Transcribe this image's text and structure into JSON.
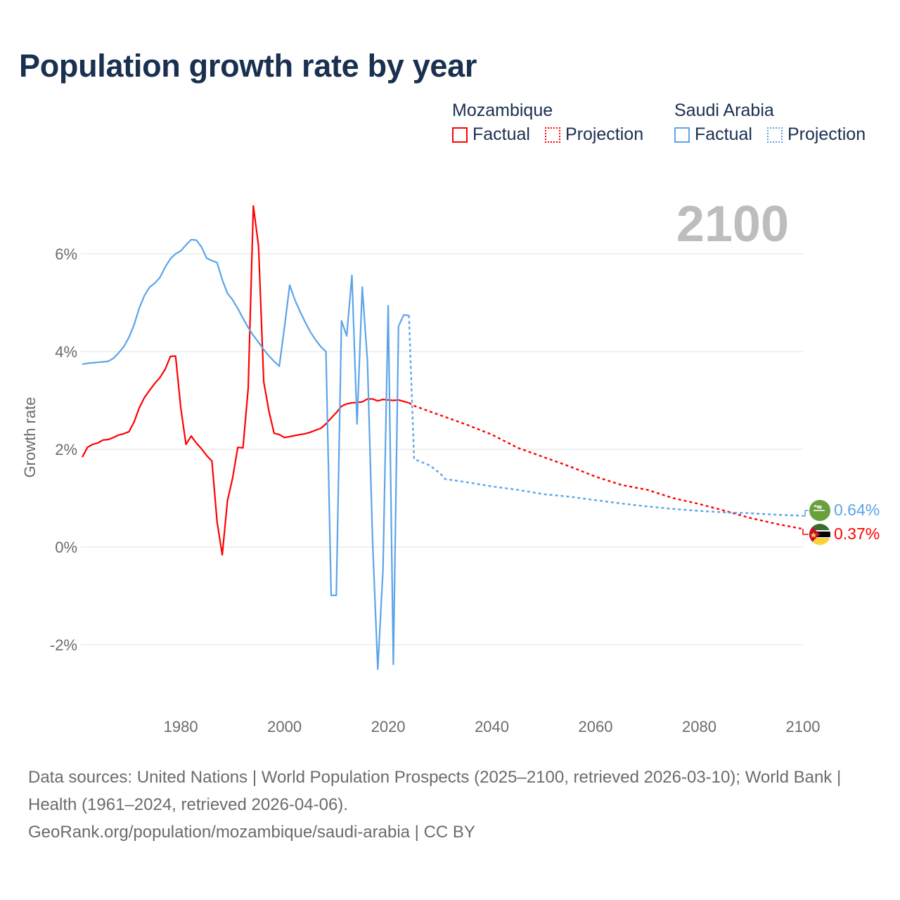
{
  "title": "Population growth rate by year",
  "legend": {
    "groups": [
      {
        "name": "Mozambique",
        "color": "#ff0000",
        "factual": "Factual",
        "projection": "Projection"
      },
      {
        "name": "Saudi Arabia",
        "color": "#5ca4e9",
        "factual": "Factual",
        "projection": "Projection"
      }
    ]
  },
  "year_label": "2100",
  "end_labels": {
    "mozambique": "0.37%",
    "saudi_arabia": "0.64%"
  },
  "flags": {
    "mozambique": "mozambique-flag-icon",
    "saudi_arabia": "saudi-arabia-flag-icon"
  },
  "footer": {
    "sources": "Data sources: United Nations | World Population Prospects (2025–2100, retrieved 2026-03-10); World Bank | Health (1961–2024, retrieved 2026-04-06).",
    "attribution": "GeoRank.org/population/mozambique/saudi-arabia | CC BY"
  },
  "chart_data": {
    "type": "line",
    "title": "Population growth rate by year",
    "xlabel": "",
    "ylabel": "Growth rate",
    "xlim": [
      1961,
      2100
    ],
    "ylim": [
      -2.6,
      7.1
    ],
    "x_ticks": [
      1980,
      2000,
      2020,
      2040,
      2060,
      2080,
      2100
    ],
    "y_ticks": [
      {
        "value": -2,
        "label": "-2%"
      },
      {
        "value": 0,
        "label": "0%"
      },
      {
        "value": 2,
        "label": "2%"
      },
      {
        "value": 4,
        "label": "4%"
      },
      {
        "value": 6,
        "label": "6%"
      }
    ],
    "grid": true,
    "legend_position": "top-right",
    "series": [
      {
        "name": "Mozambique",
        "color": "#ff0000",
        "factual": {
          "x": [
            1961,
            1962,
            1963,
            1964,
            1965,
            1966,
            1967,
            1968,
            1969,
            1970,
            1971,
            1972,
            1973,
            1974,
            1975,
            1976,
            1977,
            1978,
            1979,
            1980,
            1981,
            1982,
            1983,
            1984,
            1985,
            1986,
            1987,
            1988,
            1989,
            1990,
            1991,
            1992,
            1993,
            1994,
            1995,
            1996,
            1997,
            1998,
            1999,
            2000,
            2001,
            2002,
            2003,
            2004,
            2005,
            2006,
            2007,
            2008,
            2009,
            2010,
            2011,
            2012,
            2013,
            2014,
            2015,
            2016,
            2017,
            2018,
            2019,
            2020,
            2021,
            2022,
            2023,
            2024
          ],
          "y": [
            1.84,
            2.04,
            2.1,
            2.13,
            2.19,
            2.2,
            2.24,
            2.29,
            2.32,
            2.36,
            2.56,
            2.85,
            3.06,
            3.21,
            3.35,
            3.47,
            3.64,
            3.9,
            3.91,
            2.85,
            2.1,
            2.27,
            2.13,
            2.01,
            1.87,
            1.76,
            0.52,
            -0.16,
            0.95,
            1.41,
            2.04,
            2.03,
            3.25,
            6.98,
            6.16,
            3.38,
            2.78,
            2.33,
            2.3,
            2.24,
            2.26,
            2.28,
            2.3,
            2.32,
            2.35,
            2.39,
            2.43,
            2.52,
            2.64,
            2.75,
            2.88,
            2.93,
            2.95,
            2.96,
            2.97,
            3.03,
            3.03,
            2.99,
            3.02,
            3.01,
            3.0,
            3.01,
            2.98,
            2.95
          ]
        },
        "projection": {
          "x": [
            2024,
            2025,
            2030,
            2035,
            2040,
            2045,
            2050,
            2055,
            2060,
            2065,
            2070,
            2075,
            2080,
            2085,
            2090,
            2095,
            2100
          ],
          "y": [
            2.95,
            2.89,
            2.7,
            2.51,
            2.3,
            2.03,
            1.84,
            1.65,
            1.44,
            1.27,
            1.17,
            1.0,
            0.88,
            0.74,
            0.59,
            0.47,
            0.37
          ]
        }
      },
      {
        "name": "Saudi Arabia",
        "color": "#5ca4e9",
        "factual": {
          "x": [
            1961,
            1962,
            1963,
            1964,
            1965,
            1966,
            1967,
            1968,
            1969,
            1970,
            1971,
            1972,
            1973,
            1974,
            1975,
            1976,
            1977,
            1978,
            1979,
            1980,
            1981,
            1982,
            1983,
            1984,
            1985,
            1986,
            1987,
            1988,
            1989,
            1990,
            1991,
            1992,
            1993,
            1994,
            1995,
            1996,
            1997,
            1998,
            1999,
            2000,
            2001,
            2002,
            2003,
            2004,
            2005,
            2006,
            2007,
            2008,
            2009,
            2010,
            2011,
            2012,
            2013,
            2014,
            2015,
            2016,
            2017,
            2018,
            2019,
            2020,
            2021,
            2022,
            2023,
            2024
          ],
          "y": [
            3.74,
            3.76,
            3.77,
            3.78,
            3.79,
            3.8,
            3.86,
            3.97,
            4.1,
            4.29,
            4.55,
            4.89,
            5.15,
            5.32,
            5.4,
            5.52,
            5.73,
            5.9,
            6.0,
            6.06,
            6.18,
            6.29,
            6.28,
            6.14,
            5.91,
            5.86,
            5.82,
            5.47,
            5.19,
            5.06,
            4.88,
            4.68,
            4.49,
            4.33,
            4.19,
            4.04,
            3.91,
            3.8,
            3.7,
            4.5,
            5.36,
            5.06,
            4.82,
            4.6,
            4.4,
            4.24,
            4.1,
            4.0,
            -0.99,
            -0.99,
            4.63,
            4.32,
            5.56,
            2.52,
            5.32,
            3.8,
            0.12,
            -2.5,
            -0.46,
            4.94,
            -2.4,
            4.52,
            4.75,
            4.74
          ]
        },
        "projection": {
          "x": [
            2024,
            2025,
            2028,
            2030,
            2031,
            2035,
            2040,
            2045,
            2050,
            2055,
            2060,
            2065,
            2070,
            2075,
            2080,
            2085,
            2090,
            2095,
            2100
          ],
          "y": [
            4.74,
            1.8,
            1.67,
            1.51,
            1.39,
            1.33,
            1.24,
            1.17,
            1.08,
            1.03,
            0.96,
            0.89,
            0.83,
            0.78,
            0.74,
            0.71,
            0.69,
            0.66,
            0.64
          ]
        }
      }
    ]
  }
}
